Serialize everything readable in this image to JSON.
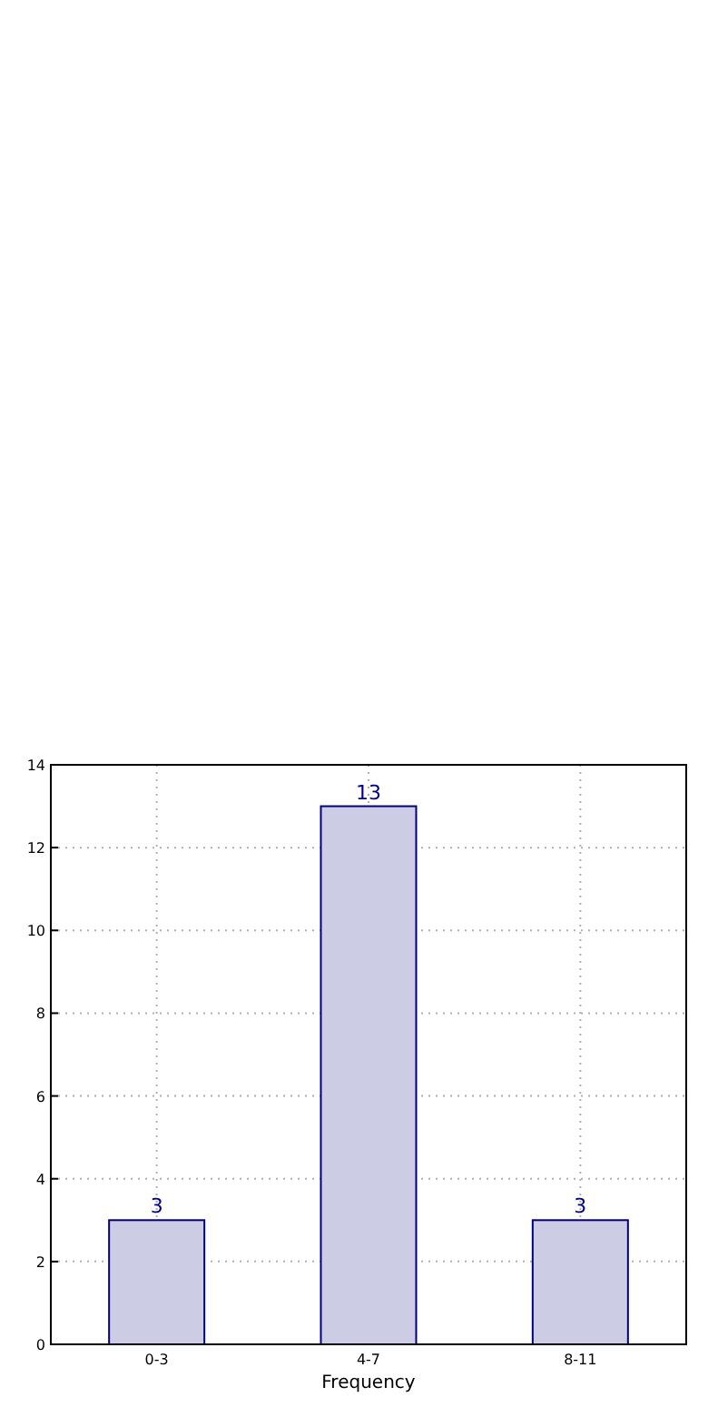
{
  "chart_data": {
    "type": "bar",
    "xlabel": "Frequency",
    "categories": [
      "0-3",
      "4-7",
      "8-11"
    ],
    "values": [
      3,
      13,
      3
    ],
    "color": "#cccce4",
    "ylim": [
      0,
      14
    ],
    "yticks": [
      0,
      2,
      4,
      6,
      8,
      10,
      12,
      14
    ],
    "grid": true,
    "data_labels": true
  }
}
